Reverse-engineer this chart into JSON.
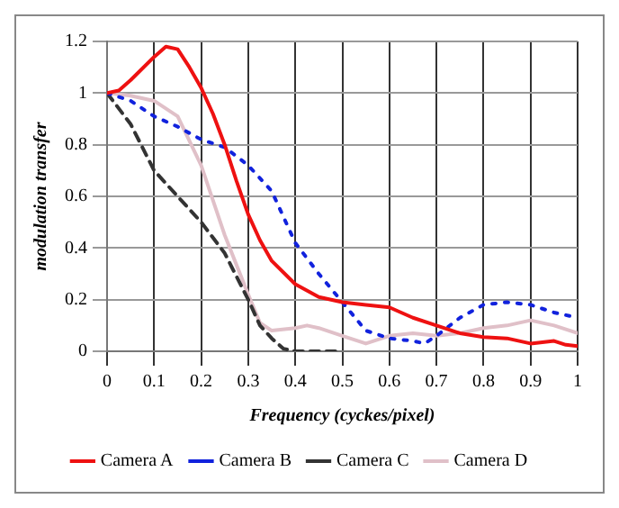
{
  "chart_data": {
    "type": "line",
    "xlabel": "Frequency (cyckes/pixel)",
    "ylabel": "modulation transfer",
    "xlim": [
      0,
      1
    ],
    "xticks": [
      0,
      0.1,
      0.2,
      0.3,
      0.4,
      0.5,
      0.6,
      0.7,
      0.8,
      0.9,
      1
    ],
    "ylim": [
      0,
      1.2
    ],
    "yticks": [
      0,
      0.2,
      0.4,
      0.6,
      0.8,
      1,
      1.2
    ],
    "grid": true,
    "legend": "bottom",
    "marker": "none",
    "series": [
      {
        "name": "Camera A",
        "color": "#ee1111",
        "line_style": "solid",
        "x": [
          0,
          0.025,
          0.05,
          0.1,
          0.125,
          0.15,
          0.175,
          0.2,
          0.225,
          0.25,
          0.275,
          0.3,
          0.325,
          0.35,
          0.4,
          0.45,
          0.5,
          0.55,
          0.6,
          0.65,
          0.7,
          0.75,
          0.8,
          0.85,
          0.9,
          0.95,
          0.975,
          1
        ],
        "values": [
          1.0,
          1.01,
          1.05,
          1.14,
          1.18,
          1.17,
          1.1,
          1.02,
          0.92,
          0.8,
          0.66,
          0.53,
          0.43,
          0.35,
          0.26,
          0.21,
          0.19,
          0.18,
          0.17,
          0.13,
          0.1,
          0.07,
          0.055,
          0.05,
          0.03,
          0.04,
          0.025,
          0.02
        ]
      },
      {
        "name": "Camera B",
        "color": "#1122dd",
        "line_style": "dotted",
        "x": [
          0,
          0.05,
          0.1,
          0.15,
          0.2,
          0.25,
          0.3,
          0.35,
          0.4,
          0.45,
          0.5,
          0.55,
          0.6,
          0.65,
          0.675,
          0.7,
          0.75,
          0.8,
          0.85,
          0.9,
          0.95,
          1
        ],
        "values": [
          1.0,
          0.97,
          0.91,
          0.87,
          0.82,
          0.79,
          0.72,
          0.62,
          0.42,
          0.3,
          0.19,
          0.08,
          0.05,
          0.04,
          0.03,
          0.06,
          0.13,
          0.18,
          0.19,
          0.18,
          0.15,
          0.13
        ]
      },
      {
        "name": "Camera C",
        "color": "#333333",
        "line_style": "dashed",
        "x": [
          0,
          0.05,
          0.1,
          0.15,
          0.2,
          0.25,
          0.3,
          0.325,
          0.35,
          0.375,
          0.4,
          0.5
        ],
        "values": [
          1.0,
          0.88,
          0.7,
          0.6,
          0.5,
          0.38,
          0.2,
          0.1,
          0.05,
          0.01,
          0,
          0
        ]
      },
      {
        "name": "Camera D",
        "color": "#e0c0c8",
        "line_style": "solid",
        "x": [
          0,
          0.05,
          0.1,
          0.15,
          0.2,
          0.25,
          0.3,
          0.325,
          0.35,
          0.4,
          0.425,
          0.45,
          0.5,
          0.55,
          0.6,
          0.65,
          0.7,
          0.75,
          0.8,
          0.85,
          0.9,
          0.95,
          1
        ],
        "values": [
          1.0,
          0.99,
          0.97,
          0.91,
          0.72,
          0.45,
          0.22,
          0.11,
          0.08,
          0.09,
          0.1,
          0.09,
          0.06,
          0.03,
          0.06,
          0.07,
          0.06,
          0.07,
          0.09,
          0.1,
          0.12,
          0.1,
          0.07
        ]
      }
    ]
  }
}
